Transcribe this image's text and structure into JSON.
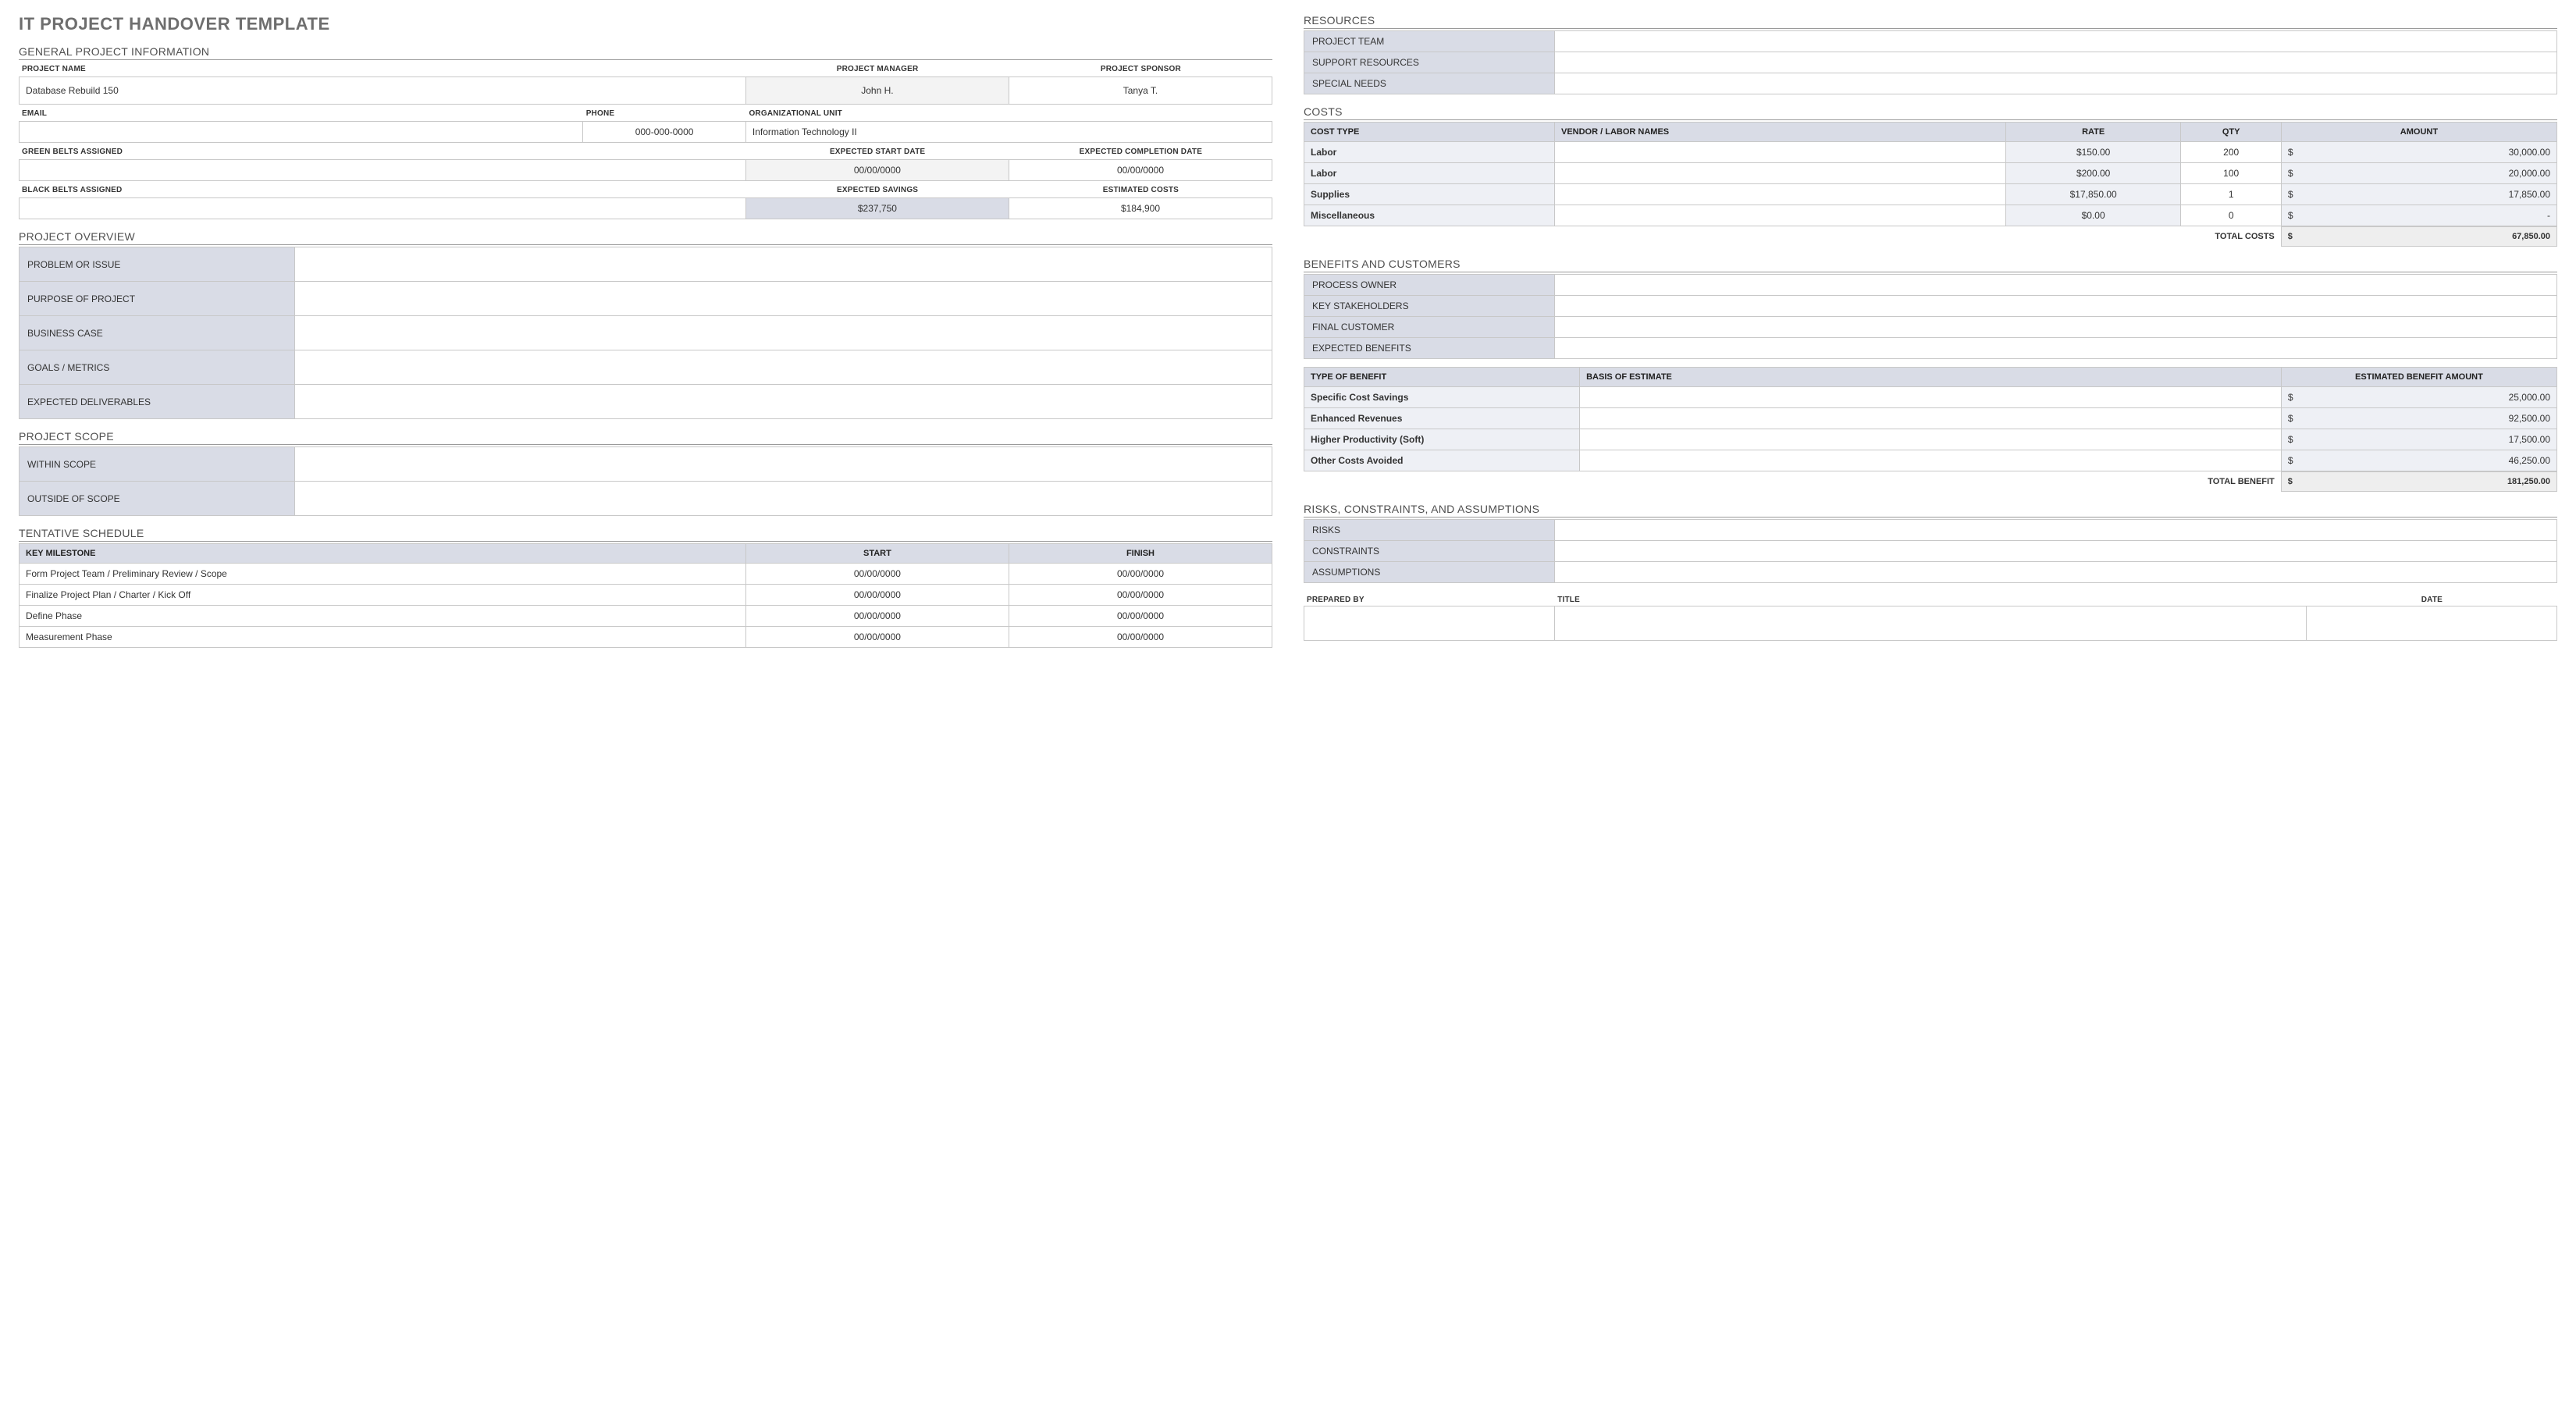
{
  "title": "IT PROJECT HANDOVER TEMPLATE",
  "general": {
    "heading": "GENERAL PROJECT INFORMATION",
    "labels": {
      "project_name": "PROJECT NAME",
      "project_manager": "PROJECT MANAGER",
      "project_sponsor": "PROJECT SPONSOR",
      "email": "EMAIL",
      "phone": "PHONE",
      "org_unit": "ORGANIZATIONAL UNIT",
      "green_belts": "GREEN BELTS ASSIGNED",
      "exp_start": "EXPECTED START DATE",
      "exp_complete": "EXPECTED COMPLETION DATE",
      "black_belts": "BLACK BELTS ASSIGNED",
      "exp_savings": "EXPECTED SAVINGS",
      "est_costs": "ESTIMATED COSTS"
    },
    "values": {
      "project_name": "Database Rebuild 150",
      "project_manager": "John H.",
      "project_sponsor": "Tanya T.",
      "email": "",
      "phone": "000-000-0000",
      "org_unit": "Information Technology II",
      "green_belts": "",
      "exp_start": "00/00/0000",
      "exp_complete": "00/00/0000",
      "black_belts": "",
      "exp_savings": "$237,750",
      "est_costs": "$184,900"
    }
  },
  "overview": {
    "heading": "PROJECT OVERVIEW",
    "rows": [
      {
        "label": "PROBLEM OR ISSUE",
        "value": ""
      },
      {
        "label": "PURPOSE OF PROJECT",
        "value": ""
      },
      {
        "label": "BUSINESS CASE",
        "value": ""
      },
      {
        "label": "GOALS / METRICS",
        "value": ""
      },
      {
        "label": "EXPECTED DELIVERABLES",
        "value": ""
      }
    ]
  },
  "scope": {
    "heading": "PROJECT SCOPE",
    "rows": [
      {
        "label": "WITHIN SCOPE",
        "value": ""
      },
      {
        "label": "OUTSIDE OF SCOPE",
        "value": ""
      }
    ]
  },
  "schedule": {
    "heading": "TENTATIVE SCHEDULE",
    "columns": {
      "milestone": "KEY MILESTONE",
      "start": "START",
      "finish": "FINISH"
    },
    "rows": [
      {
        "milestone": "Form Project Team / Preliminary Review / Scope",
        "start": "00/00/0000",
        "finish": "00/00/0000"
      },
      {
        "milestone": "Finalize Project Plan / Charter / Kick Off",
        "start": "00/00/0000",
        "finish": "00/00/0000"
      },
      {
        "milestone": "Define Phase",
        "start": "00/00/0000",
        "finish": "00/00/0000"
      },
      {
        "milestone": "Measurement Phase",
        "start": "00/00/0000",
        "finish": "00/00/0000"
      }
    ]
  },
  "resources": {
    "heading": "RESOURCES",
    "rows": [
      {
        "label": "PROJECT TEAM",
        "value": ""
      },
      {
        "label": "SUPPORT RESOURCES",
        "value": ""
      },
      {
        "label": "SPECIAL NEEDS",
        "value": ""
      }
    ]
  },
  "costs": {
    "heading": "COSTS",
    "columns": {
      "type": "COST TYPE",
      "vendor": "VENDOR / LABOR NAMES",
      "rate": "RATE",
      "qty": "QTY",
      "amount": "AMOUNT"
    },
    "rows": [
      {
        "type": "Labor",
        "vendor": "",
        "rate": "$150.00",
        "qty": "200",
        "amount": "30,000.00"
      },
      {
        "type": "Labor",
        "vendor": "",
        "rate": "$200.00",
        "qty": "100",
        "amount": "20,000.00"
      },
      {
        "type": "Supplies",
        "vendor": "",
        "rate": "$17,850.00",
        "qty": "1",
        "amount": "17,850.00"
      },
      {
        "type": "Miscellaneous",
        "vendor": "",
        "rate": "$0.00",
        "qty": "0",
        "amount": "-"
      }
    ],
    "total_label": "TOTAL COSTS",
    "total_value": "67,850.00",
    "currency": "$"
  },
  "benefits": {
    "heading": "BENEFITS AND CUSTOMERS",
    "info_rows": [
      {
        "label": "PROCESS OWNER",
        "value": ""
      },
      {
        "label": "KEY STAKEHOLDERS",
        "value": ""
      },
      {
        "label": "FINAL CUSTOMER",
        "value": ""
      },
      {
        "label": "EXPECTED BENEFITS",
        "value": ""
      }
    ],
    "columns": {
      "type": "TYPE OF BENEFIT",
      "basis": "BASIS OF ESTIMATE",
      "amount": "ESTIMATED BENEFIT AMOUNT"
    },
    "rows": [
      {
        "type": "Specific Cost Savings",
        "basis": "",
        "amount": "25,000.00"
      },
      {
        "type": "Enhanced Revenues",
        "basis": "",
        "amount": "92,500.00"
      },
      {
        "type": "Higher Productivity (Soft)",
        "basis": "",
        "amount": "17,500.00"
      },
      {
        "type": "Other Costs Avoided",
        "basis": "",
        "amount": "46,250.00"
      }
    ],
    "total_label": "TOTAL BENEFIT",
    "total_value": "181,250.00",
    "currency": "$"
  },
  "risks": {
    "heading": "RISKS, CONSTRAINTS, AND ASSUMPTIONS",
    "rows": [
      {
        "label": "RISKS",
        "value": ""
      },
      {
        "label": "CONSTRAINTS",
        "value": ""
      },
      {
        "label": "ASSUMPTIONS",
        "value": ""
      }
    ]
  },
  "signoff": {
    "labels": {
      "prepared_by": "PREPARED BY",
      "title": "TITLE",
      "date": "DATE"
    },
    "values": {
      "prepared_by": "",
      "title": "",
      "date": ""
    }
  },
  "style": {
    "label_bg": "#d9dce6",
    "border": "#c8c8c8",
    "title_color": "#6e6e6e",
    "alt_bg": "#f3f3f3"
  }
}
